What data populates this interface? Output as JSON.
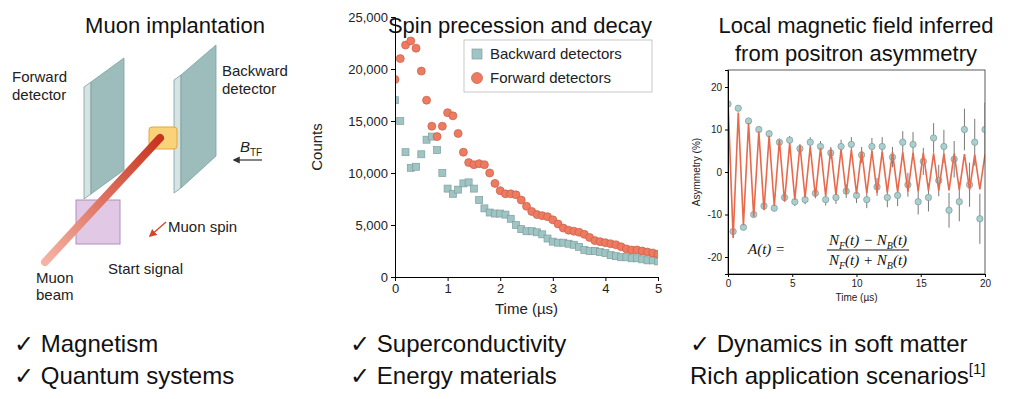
{
  "chart_data": [
    {
      "type": "scatter",
      "title": "Spin precession and decay",
      "x_label": "Time (µs)",
      "y_label": "Counts",
      "x": [
        0,
        0.1,
        0.2,
        0.3,
        0.4,
        0.5,
        0.6,
        0.7,
        0.8,
        0.9,
        1,
        1.1,
        1.2,
        1.3,
        1.4,
        1.5,
        1.6,
        1.7,
        1.8,
        1.9,
        2,
        2.1,
        2.2,
        2.3,
        2.4,
        2.5,
        2.6,
        2.7,
        2.8,
        2.9,
        3,
        3.1,
        3.2,
        3.3,
        3.4,
        3.5,
        3.6,
        3.7,
        3.8,
        3.9,
        4,
        4.1,
        4.2,
        4.3,
        4.4,
        4.5,
        4.6,
        4.7,
        4.8,
        4.9,
        5
      ],
      "xlim": [
        0,
        5
      ],
      "xticks": [
        0,
        1,
        2,
        3,
        4,
        5
      ],
      "ylim": [
        0,
        25000
      ],
      "yticks": [
        0,
        {
          "value": 5000,
          "label": "5,000"
        },
        {
          "value": 10000,
          "label": "10,000"
        },
        {
          "value": 15000,
          "label": "15,000"
        },
        {
          "value": 20000,
          "label": "20,000"
        },
        {
          "value": 25000,
          "label": "25,000"
        }
      ],
      "legend": "upper right",
      "series": [
        {
          "name": "Backward detectors",
          "color": "#9fc4c4",
          "marker": "square",
          "values": [
            17000,
            15000,
            12000,
            10500,
            10600,
            11800,
            13200,
            13500,
            12200,
            10000,
            8500,
            8000,
            8400,
            9000,
            9100,
            8500,
            7400,
            6600,
            6200,
            6100,
            6100,
            6000,
            5600,
            5000,
            4600,
            4400,
            4400,
            4300,
            4100,
            3700,
            3400,
            3300,
            3300,
            3200,
            3100,
            2900,
            2600,
            2500,
            2500,
            2400,
            2300,
            2100,
            2000,
            1900,
            1900,
            1800,
            1800,
            1700,
            1600,
            1600,
            1500
          ]
        },
        {
          "name": "Forward detectors",
          "color": "#ef7a5f",
          "marker": "circle",
          "values": [
            19000,
            21000,
            22300,
            22700,
            22000,
            19800,
            17000,
            14500,
            13500,
            14500,
            15800,
            15500,
            13800,
            12000,
            11000,
            10800,
            10900,
            10800,
            10000,
            9000,
            8300,
            8000,
            8000,
            7900,
            7400,
            6800,
            6300,
            6000,
            5900,
            5800,
            5500,
            5100,
            4700,
            4500,
            4400,
            4300,
            4100,
            3800,
            3500,
            3400,
            3300,
            3200,
            3100,
            2900,
            2700,
            2600,
            2600,
            2500,
            2400,
            2300,
            2200
          ]
        }
      ]
    },
    {
      "type": "scatter",
      "title": [
        "Local magnetic field inferred",
        "from positron asymmetry"
      ],
      "x_label": "Time (µs)",
      "y_label": "Asymmetry (%)",
      "x": [
        0,
        0.4,
        0.8,
        1.2,
        1.6,
        2,
        2.4,
        2.8,
        3.2,
        3.6,
        4,
        4.4,
        4.8,
        5.2,
        5.6,
        6,
        6.4,
        6.8,
        7.2,
        7.6,
        8,
        8.4,
        8.8,
        9.2,
        9.6,
        10,
        10.4,
        10.8,
        11.2,
        11.6,
        12,
        12.4,
        12.8,
        13.2,
        13.6,
        14,
        14.4,
        14.8,
        15.2,
        15.6,
        16,
        16.4,
        16.8,
        17.2,
        17.6,
        18,
        18.4,
        18.8,
        19.2,
        19.6,
        20
      ],
      "xlim": [
        0,
        20
      ],
      "xticks": [
        0,
        5,
        10,
        15,
        20
      ],
      "ylim": [
        -24,
        24
      ],
      "yticks": [
        -20,
        -10,
        0,
        10,
        20
      ],
      "series": [
        {
          "type": "scatter",
          "color": "#a9cfcf",
          "marker": "circle",
          "values": [
            16,
            -14,
            15,
            -13,
            12,
            -10,
            10,
            -8,
            9,
            -8.5,
            7,
            -6,
            7.5,
            -7,
            5.5,
            -6.5,
            7,
            -5,
            6,
            -6.5,
            4.5,
            -6,
            6,
            -4.5,
            6.5,
            -5.5,
            4,
            -6.5,
            6,
            -3.5,
            6,
            -6,
            3.5,
            -5.5,
            7,
            -3,
            6.5,
            -7,
            2.5,
            -6,
            8,
            -2,
            6,
            -9,
            3,
            -7,
            10,
            -3,
            7,
            -11,
            10
          ],
          "errors": [
            0.5,
            0.5,
            0.5,
            0.6,
            0.6,
            0.6,
            0.7,
            0.7,
            0.8,
            0.8,
            0.9,
            0.9,
            1,
            1,
            1.1,
            1.1,
            1.2,
            1.2,
            1.3,
            1.4,
            1.4,
            1.5,
            1.6,
            1.6,
            1.7,
            1.8,
            1.9,
            2,
            2,
            2.1,
            2.2,
            2.3,
            2.4,
            2.5,
            2.6,
            2.8,
            2.9,
            3,
            3.2,
            3.3,
            3.5,
            3.7,
            3.9,
            4.1,
            4.3,
            4.6,
            4.9,
            5.2,
            5.5,
            5.9,
            6.3
          ]
        },
        {
          "type": "line",
          "color": "#e8694c",
          "line_style": "solid",
          "values": [
            17,
            -15.5,
            14,
            -12.5,
            11.5,
            -10.5,
            9.5,
            -9,
            8.5,
            -8,
            7.5,
            -7,
            6.8,
            -6.5,
            6.3,
            -6,
            6,
            -5.8,
            5.7,
            -5.6,
            5.5,
            -5.4,
            5.3,
            -5.2,
            5.2,
            -5.1,
            5,
            -5,
            4.9,
            -4.9,
            4.8,
            -4.8,
            4.7,
            -4.7,
            4.6,
            -4.6,
            4.5,
            -4.5,
            4.5,
            -4.4,
            4.4,
            -4.4,
            4.3,
            -4.3,
            4.3,
            -4.2,
            4.2,
            -4.2,
            4.1,
            -4.1,
            4.1
          ]
        }
      ],
      "annotations": [
        {
          "lhs": "A(t) =",
          "numerator": [
            {
              "text": "N"
            },
            {
              "sub": "F"
            },
            {
              "text": "(t) − N"
            },
            {
              "sub": "B"
            },
            {
              "text": "(t)"
            }
          ],
          "denominator": [
            {
              "text": "N"
            },
            {
              "sub": "F"
            },
            {
              "text": "(t) + N"
            },
            {
              "sub": "B"
            },
            {
              "text": "(t)"
            }
          ]
        }
      ]
    }
  ],
  "diagram": {
    "title": "Muon implantation",
    "forward_detector": [
      "Forward",
      "detector"
    ],
    "backward_detector": [
      "Backward",
      "detector"
    ],
    "field": {
      "text": "B",
      "sub": "TF"
    },
    "muon_spin": "Muon spin",
    "muon_beam": [
      "Muon",
      "beam"
    ],
    "start_signal": "Start signal"
  },
  "bullets": [
    [
      "✓ Magnetism",
      "✓ Quantum systems"
    ],
    [
      "✓ Superconductivity",
      "✓ Energy materials"
    ],
    [
      "✓ Dynamics in soft matter",
      {
        "text": "Rich application scenarios",
        "sup": "[1]"
      }
    ]
  ]
}
